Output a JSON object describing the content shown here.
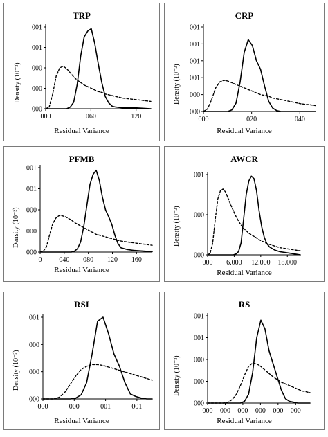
{
  "chart_data": [
    {
      "type": "line",
      "title": "TRP",
      "xlabel": "Residual Variance",
      "ylabel": "Density (10⁻²)",
      "x_ticks": [
        "000",
        "060",
        "120"
      ],
      "y_ticks": [
        "000",
        "000",
        "000",
        "001",
        "001"
      ],
      "xlim": [
        0,
        150
      ],
      "ylim": [
        0,
        1
      ],
      "x": [
        0,
        5,
        10,
        15,
        20,
        25,
        30,
        35,
        40,
        45,
        50,
        55,
        60,
        65,
        70,
        75,
        80,
        85,
        90,
        95,
        100,
        110,
        120,
        130,
        140,
        150
      ],
      "series": [
        {
          "style": "dashed",
          "values": [
            0,
            0.02,
            0.18,
            0.4,
            0.5,
            0.52,
            0.49,
            0.44,
            0.39,
            0.35,
            0.32,
            0.29,
            0.27,
            0.25,
            0.23,
            0.21,
            0.2,
            0.18,
            0.17,
            0.16,
            0.15,
            0.13,
            0.12,
            0.11,
            0.1,
            0.09
          ]
        },
        {
          "style": "solid",
          "values": [
            0,
            0,
            0,
            0,
            0,
            0,
            0,
            0.02,
            0.08,
            0.3,
            0.65,
            0.88,
            0.95,
            0.98,
            0.8,
            0.55,
            0.32,
            0.15,
            0.07,
            0.03,
            0.02,
            0.01,
            0.01,
            0.01,
            0.005,
            0
          ]
        }
      ]
    },
    {
      "type": "line",
      "title": "CRP",
      "xlabel": "Residual Variance",
      "ylabel": "Density (10⁻²)",
      "x_ticks": [
        "000",
        "020",
        "040"
      ],
      "y_ticks": [
        "000",
        "000",
        "001",
        "001",
        "001",
        "001"
      ],
      "xlim": [
        0,
        55
      ],
      "ylim": [
        0,
        1
      ],
      "x": [
        0,
        2,
        4,
        6,
        8,
        10,
        12,
        14,
        16,
        18,
        20,
        22,
        24,
        26,
        28,
        30,
        32,
        34,
        36,
        38,
        40,
        44,
        48,
        52,
        55
      ],
      "series": [
        {
          "style": "dashed",
          "values": [
            0,
            0.03,
            0.14,
            0.28,
            0.35,
            0.37,
            0.36,
            0.34,
            0.32,
            0.3,
            0.28,
            0.26,
            0.24,
            0.22,
            0.2,
            0.19,
            0.18,
            0.16,
            0.15,
            0.14,
            0.13,
            0.11,
            0.09,
            0.08,
            0.07
          ]
        },
        {
          "style": "solid",
          "values": [
            0,
            0,
            0,
            0,
            0,
            0,
            0,
            0.02,
            0.1,
            0.35,
            0.7,
            0.85,
            0.78,
            0.6,
            0.5,
            0.3,
            0.12,
            0.04,
            0.01,
            0,
            0,
            0,
            0,
            0,
            0
          ]
        }
      ]
    },
    {
      "type": "line",
      "title": "PFMB",
      "xlabel": "Residual Variance",
      "ylabel": "Density (10⁻²)",
      "x_ticks": [
        "0",
        "040",
        "080",
        "120",
        "160"
      ],
      "y_ticks": [
        "000",
        "000",
        "000",
        "001",
        "001"
      ],
      "xlim": [
        0,
        180
      ],
      "ylim": [
        0,
        1
      ],
      "x": [
        0,
        5,
        10,
        15,
        20,
        25,
        30,
        35,
        40,
        45,
        50,
        55,
        60,
        65,
        70,
        75,
        80,
        85,
        90,
        95,
        100,
        105,
        110,
        115,
        120,
        125,
        130,
        140,
        150,
        160,
        170,
        180
      ],
      "series": [
        {
          "style": "dashed",
          "values": [
            0,
            0.01,
            0.06,
            0.2,
            0.33,
            0.4,
            0.43,
            0.43,
            0.42,
            0.4,
            0.38,
            0.35,
            0.33,
            0.31,
            0.29,
            0.27,
            0.25,
            0.23,
            0.21,
            0.2,
            0.19,
            0.18,
            0.17,
            0.16,
            0.15,
            0.14,
            0.13,
            0.12,
            0.11,
            0.1,
            0.09,
            0.08
          ]
        },
        {
          "style": "solid",
          "values": [
            0,
            0,
            0,
            0,
            0,
            0,
            0,
            0,
            0,
            0,
            0,
            0.01,
            0.04,
            0.12,
            0.3,
            0.55,
            0.8,
            0.92,
            0.97,
            0.85,
            0.65,
            0.5,
            0.42,
            0.33,
            0.2,
            0.1,
            0.05,
            0.03,
            0.02,
            0.015,
            0.01,
            0.005
          ]
        }
      ]
    },
    {
      "type": "line",
      "title": "AWCR",
      "xlabel": "Residual Variance",
      "ylabel": "Density (10⁻²)",
      "x_ticks": [
        "000",
        "6.000",
        "12.000",
        "18.000"
      ],
      "y_ticks": [
        "000",
        "000",
        "001"
      ],
      "xlim": [
        0,
        18
      ],
      "ylim": [
        0,
        1
      ],
      "x": [
        0,
        0.5,
        1,
        1.5,
        2,
        2.5,
        3,
        3.5,
        4,
        4.5,
        5,
        5.5,
        6,
        6.5,
        7,
        7.5,
        8,
        8.5,
        9,
        9.5,
        10,
        10.5,
        11,
        11.5,
        12,
        13,
        14,
        15,
        16,
        17,
        18
      ],
      "series": [
        {
          "style": "dashed",
          "values": [
            0,
            0.02,
            0.15,
            0.45,
            0.7,
            0.8,
            0.82,
            0.78,
            0.7,
            0.62,
            0.55,
            0.48,
            0.42,
            0.37,
            0.33,
            0.3,
            0.27,
            0.25,
            0.23,
            0.21,
            0.19,
            0.17,
            0.16,
            0.14,
            0.13,
            0.11,
            0.09,
            0.08,
            0.07,
            0.06,
            0.05
          ]
        },
        {
          "style": "solid",
          "values": [
            0,
            0,
            0,
            0,
            0,
            0,
            0,
            0,
            0,
            0,
            0,
            0.01,
            0.04,
            0.15,
            0.45,
            0.75,
            0.92,
            0.98,
            0.95,
            0.8,
            0.55,
            0.35,
            0.22,
            0.14,
            0.1,
            0.06,
            0.04,
            0.03,
            0.02,
            0.01,
            0
          ]
        }
      ]
    },
    {
      "type": "line",
      "title": "RSI",
      "xlabel": "Residual Variance",
      "ylabel": "Density (10⁻²)",
      "x_ticks": [
        "000",
        "000",
        "001",
        "001"
      ],
      "y_ticks": [
        "000",
        "000",
        "000",
        "001"
      ],
      "xlim": [
        0,
        20
      ],
      "ylim": [
        0,
        1
      ],
      "x": [
        0,
        1,
        2,
        3,
        4,
        5,
        6,
        7,
        8,
        9,
        10,
        11,
        12,
        13,
        14,
        15,
        16,
        17,
        18,
        19,
        20
      ],
      "series": [
        {
          "style": "dashed",
          "values": [
            0,
            0,
            0,
            0.02,
            0.08,
            0.18,
            0.28,
            0.36,
            0.4,
            0.42,
            0.42,
            0.41,
            0.39,
            0.37,
            0.35,
            0.33,
            0.31,
            0.29,
            0.27,
            0.25,
            0.23
          ]
        },
        {
          "style": "solid",
          "values": [
            0,
            0,
            0,
            0,
            0,
            0,
            0.01,
            0.05,
            0.2,
            0.55,
            0.95,
            1.0,
            0.8,
            0.55,
            0.4,
            0.2,
            0.06,
            0.03,
            0.01,
            0,
            0
          ]
        }
      ]
    },
    {
      "type": "line",
      "title": "RS",
      "xlabel": "Residual Variance",
      "ylabel": "Density (10⁻²)",
      "x_ticks": [
        "000",
        "000",
        "000",
        "000",
        "000",
        "000"
      ],
      "y_ticks": [
        "000",
        "000",
        "000",
        "001",
        "001"
      ],
      "xlim": [
        0,
        25
      ],
      "ylim": [
        0,
        1
      ],
      "x": [
        0,
        1,
        2,
        3,
        4,
        5,
        6,
        7,
        8,
        9,
        10,
        11,
        12,
        13,
        14,
        15,
        16,
        17,
        18,
        19,
        20,
        21,
        22,
        23,
        24,
        25
      ],
      "series": [
        {
          "style": "dashed",
          "values": [
            0,
            0,
            0,
            0,
            0,
            0.01,
            0.04,
            0.1,
            0.2,
            0.32,
            0.42,
            0.46,
            0.45,
            0.42,
            0.38,
            0.34,
            0.3,
            0.27,
            0.24,
            0.22,
            0.2,
            0.18,
            0.16,
            0.14,
            0.13,
            0.12
          ]
        },
        {
          "style": "solid",
          "values": [
            0,
            0,
            0,
            0,
            0,
            0,
            0,
            0,
            0,
            0.02,
            0.1,
            0.35,
            0.75,
            0.95,
            0.85,
            0.6,
            0.45,
            0.3,
            0.15,
            0.05,
            0.02,
            0.01,
            0,
            0,
            0,
            0
          ]
        }
      ]
    }
  ]
}
